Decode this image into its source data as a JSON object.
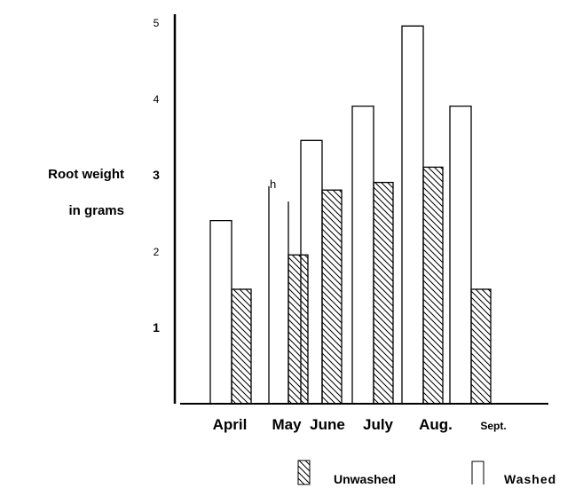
{
  "chart_data": {
    "type": "bar",
    "title": "",
    "ylabel_lines": [
      "Root weight",
      "in grams"
    ],
    "xlabel": "",
    "categories": [
      "April",
      "May",
      "June",
      "July",
      "Aug.",
      "Sept."
    ],
    "yticks": [
      "1",
      "2",
      "3",
      "4",
      "5"
    ],
    "ylim": [
      0,
      5
    ],
    "series": [
      {
        "name": "Washed",
        "fill": "none",
        "values": [
          2.4,
          2.85,
          3.45,
          3.9,
          4.95,
          3.9
        ]
      },
      {
        "name": "Unwashed",
        "fill": "hatched",
        "values": [
          1.5,
          1.95,
          2.8,
          2.9,
          3.1,
          1.5
        ]
      }
    ],
    "legend": {
      "position": "bottom-right",
      "items": [
        "Unwashed",
        "Washed"
      ]
    },
    "annotations": [
      "h"
    ],
    "grid": false
  }
}
